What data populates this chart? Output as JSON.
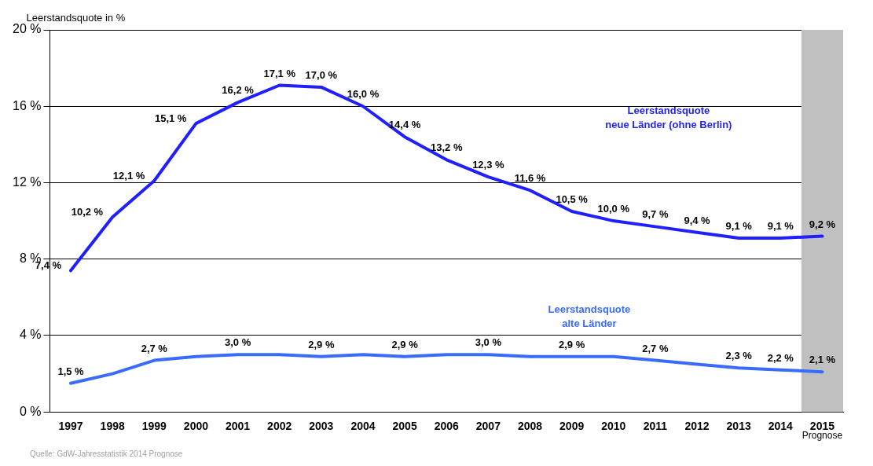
{
  "chart_data": {
    "type": "line",
    "ylabel": "Leerstandsquote in %",
    "categories": [
      "1997",
      "1998",
      "1999",
      "2000",
      "2001",
      "2002",
      "2003",
      "2004",
      "2005",
      "2006",
      "2007",
      "2008",
      "2009",
      "2010",
      "2011",
      "2012",
      "2013",
      "2014",
      "2015"
    ],
    "series": [
      {
        "name": "Leerstandsquote neue Länder (ohne Berlin)",
        "color": "#1f1fff",
        "values": [
          7.4,
          10.2,
          12.1,
          15.1,
          16.2,
          17.1,
          17.0,
          16.0,
          14.4,
          13.2,
          12.3,
          11.6,
          10.5,
          10.0,
          9.7,
          9.4,
          9.1,
          9.1,
          9.2
        ],
        "value_labels": [
          "7,4 %",
          "10,2 %",
          "12,1 %",
          "15,1 %",
          "16,2 %",
          "17,1 %",
          "17,0 %",
          "16,0 %",
          "14,4 %",
          "13,2 %",
          "12,3 %",
          "11,6 %",
          "10,5 %",
          "10,0 %",
          "9,7 %",
          "9,4 %",
          "9,1 %",
          "9,1 %",
          "9,2 %"
        ]
      },
      {
        "name": "Leerstandsquote alte Länder",
        "color": "#3a6bff",
        "values": [
          1.5,
          2.0,
          2.7,
          2.9,
          3.0,
          3.0,
          2.9,
          3.0,
          2.9,
          3.0,
          3.0,
          2.9,
          2.9,
          2.9,
          2.7,
          2.5,
          2.3,
          2.2,
          2.1
        ],
        "value_labels": [
          "1,5 %",
          null,
          "2,7 %",
          null,
          "3,0 %",
          null,
          "2,9 %",
          null,
          "2,9 %",
          null,
          "3,0 %",
          null,
          "2,9 %",
          null,
          "2,7 %",
          null,
          "2,3 %",
          "2,2 %",
          "2,1 %"
        ]
      }
    ],
    "ylim": [
      0,
      20
    ],
    "yticks": [
      {
        "value": 0,
        "label": "0 %"
      },
      {
        "value": 4,
        "label": "4 %"
      },
      {
        "value": 8,
        "label": "8 %"
      },
      {
        "value": 12,
        "label": "12 %"
      },
      {
        "value": 16,
        "label": "16 %"
      },
      {
        "value": 20,
        "label": "20 %"
      }
    ],
    "grid": "y",
    "legend": false,
    "marker": "none",
    "line_style": "solid",
    "bands": [
      {
        "axis": "x",
        "from": "2015",
        "to": "2015",
        "label": "Prognose",
        "color": "#c0c0c0"
      }
    ],
    "annotations": [
      "Quelle: GdW-Jahresstatistik 2014 Prognose"
    ]
  }
}
